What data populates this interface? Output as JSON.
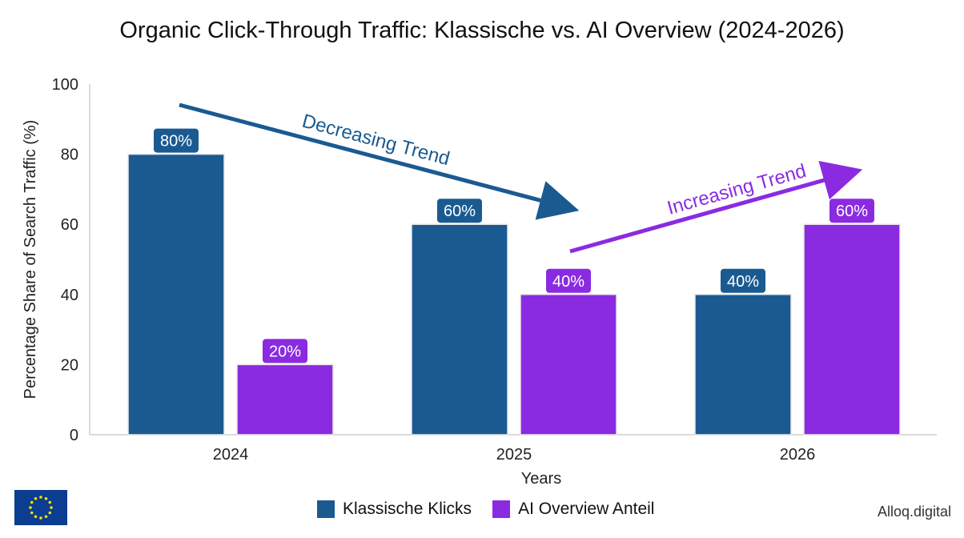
{
  "colors": {
    "klassische": "#1a5a91",
    "ai": "#8a2be2",
    "trend_down": "#1a5a91",
    "trend_up": "#8a2be2",
    "axis": "#cfcfcf",
    "label_bg_klassische": "#1a5a91",
    "label_bg_ai": "#8a2be2"
  },
  "chart_data": {
    "type": "bar",
    "title": "Organic Click-Through Traffic: Klassische vs. AI Overview (2024-2026)",
    "xlabel": "Years",
    "ylabel": "Percentage Share of Search Traffic (%)",
    "ylim": [
      0,
      100
    ],
    "yticks": [
      "0",
      "20",
      "40",
      "60",
      "80",
      "100"
    ],
    "categories": [
      "2024",
      "2025",
      "2026"
    ],
    "series": [
      {
        "name": "Klassische Klicks",
        "values": [
          80,
          60,
          40
        ],
        "labels": [
          "80%",
          "60%",
          "40%"
        ]
      },
      {
        "name": "AI Overview Anteil",
        "values": [
          20,
          40,
          60
        ],
        "labels": [
          "20%",
          "40%",
          "60%"
        ]
      }
    ],
    "annotations": [
      {
        "text": "Decreasing Trend"
      },
      {
        "text": "Increasing Trend"
      }
    ],
    "grid": false,
    "legend": "bottom"
  },
  "watermark": "Alloq.digital",
  "logo_icon": "eu-flag-icon"
}
